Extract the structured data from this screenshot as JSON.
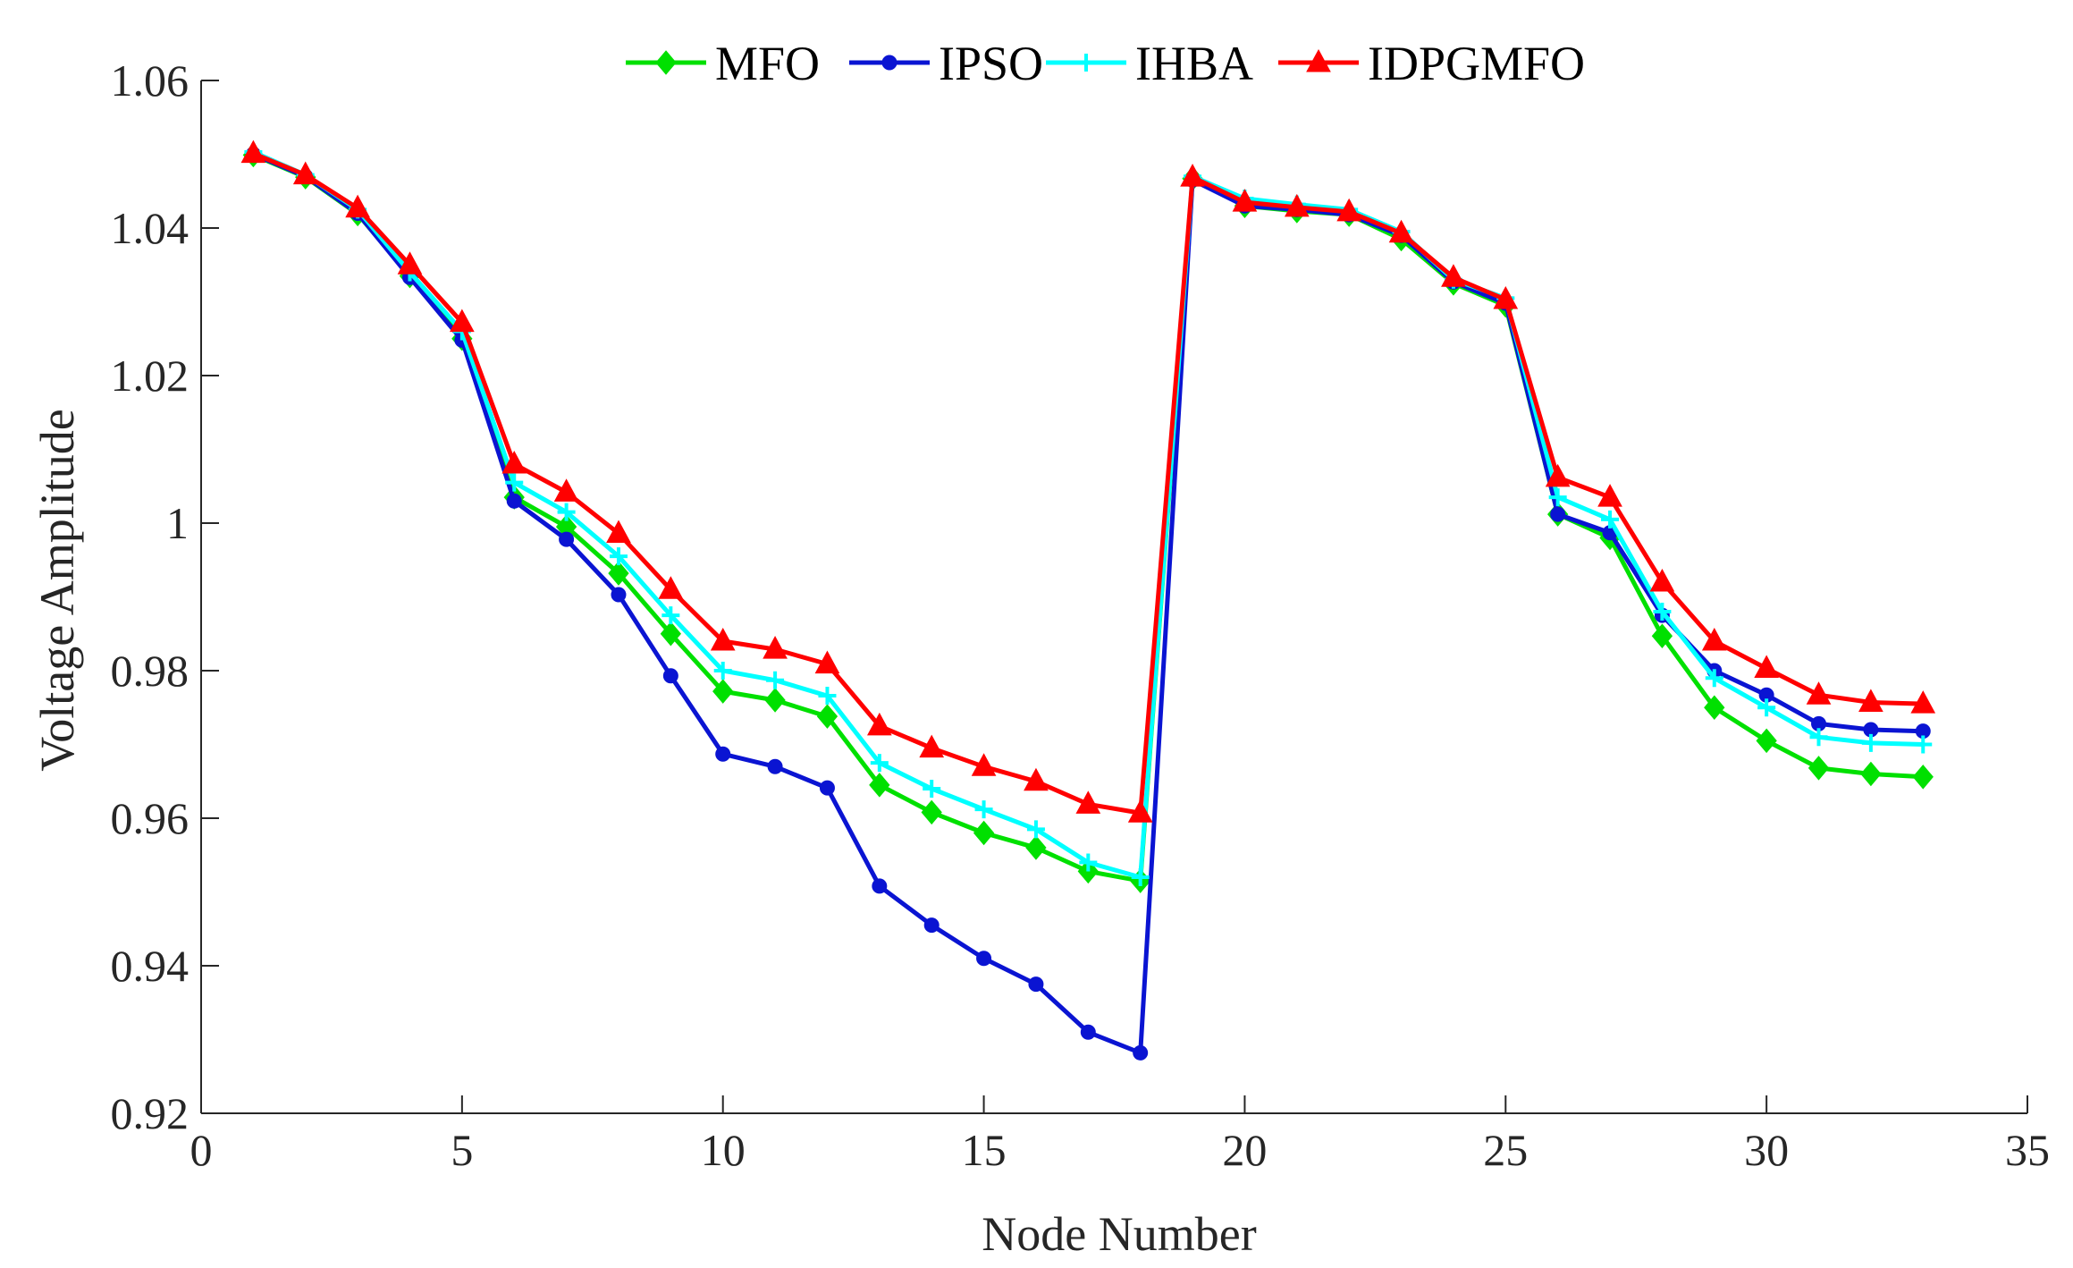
{
  "chart_data": {
    "type": "line",
    "title": "",
    "xlabel": "Node Number",
    "ylabel": "Voltage Amplitude",
    "xlim": [
      0,
      35
    ],
    "ylim": [
      0.92,
      1.06
    ],
    "xticks": [
      0,
      5,
      10,
      15,
      20,
      25,
      30,
      35
    ],
    "xtick_labels": [
      "0",
      "5",
      "10",
      "15",
      "20",
      "25",
      "30",
      "35"
    ],
    "yticks": [
      0.92,
      0.94,
      0.96,
      0.98,
      1.0,
      1.02,
      1.04,
      1.06
    ],
    "ytick_labels": [
      "0.92",
      "0.94",
      "0.96",
      "0.98",
      "1",
      "1.02",
      "1.04",
      "1.06"
    ],
    "grid": false,
    "legend_position": "top-center",
    "x": [
      1,
      2,
      3,
      4,
      5,
      6,
      7,
      8,
      9,
      10,
      11,
      12,
      13,
      14,
      15,
      16,
      17,
      18,
      19,
      20,
      21,
      22,
      23,
      24,
      25,
      26,
      27,
      28,
      29,
      30,
      31,
      32,
      33
    ],
    "series": [
      {
        "name": "MFO",
        "color": "#00e000",
        "marker": "diamond",
        "values": [
          1.0499,
          1.0469,
          1.0419,
          1.0335,
          1.025,
          1.0035,
          0.9995,
          0.9932,
          0.985,
          0.9772,
          0.976,
          0.9738,
          0.9645,
          0.9608,
          0.958,
          0.956,
          0.9528,
          0.9515,
          1.0467,
          1.043,
          1.0423,
          1.0418,
          1.0385,
          1.0325,
          1.0295,
          1.0012,
          0.998,
          0.9847,
          0.975,
          0.9705,
          0.9668,
          0.966,
          0.9656
        ]
      },
      {
        "name": "IPSO",
        "color": "#0a14d2",
        "marker": "circle",
        "values": [
          1.05,
          1.047,
          1.042,
          1.0333,
          1.0248,
          1.003,
          0.9978,
          0.9903,
          0.9793,
          0.9687,
          0.967,
          0.9641,
          0.9508,
          0.9455,
          0.941,
          0.9375,
          0.931,
          0.9282,
          1.0465,
          1.043,
          1.0425,
          1.0418,
          1.039,
          1.0327,
          1.0298,
          1.0012,
          0.9987,
          0.9875,
          0.98,
          0.9767,
          0.9728,
          0.972,
          0.9718
        ]
      },
      {
        "name": "IHBA",
        "color": "#00ffff",
        "marker": "plus",
        "values": [
          1.0503,
          1.0472,
          1.0425,
          1.034,
          1.026,
          1.0055,
          1.0015,
          0.9955,
          0.9875,
          0.98,
          0.9787,
          0.9766,
          0.9675,
          0.964,
          0.9612,
          0.9585,
          0.954,
          0.952,
          1.047,
          1.044,
          1.0432,
          1.0425,
          1.0395,
          1.033,
          1.0305,
          1.0035,
          1.0005,
          0.988,
          0.979,
          0.975,
          0.971,
          0.9702,
          0.97
        ]
      },
      {
        "name": "IDPGMFO",
        "color": "#ff0000",
        "marker": "triangle",
        "values": [
          1.0501,
          1.0472,
          1.0427,
          1.035,
          1.0272,
          1.008,
          1.0042,
          0.9986,
          0.991,
          0.984,
          0.9829,
          0.9809,
          0.9725,
          0.9695,
          0.967,
          0.965,
          0.9619,
          0.9607,
          1.0469,
          1.0435,
          1.0428,
          1.0422,
          1.0393,
          1.0333,
          1.0303,
          1.0062,
          1.0035,
          0.992,
          0.984,
          0.9803,
          0.9767,
          0.9757,
          0.9755
        ]
      }
    ]
  }
}
